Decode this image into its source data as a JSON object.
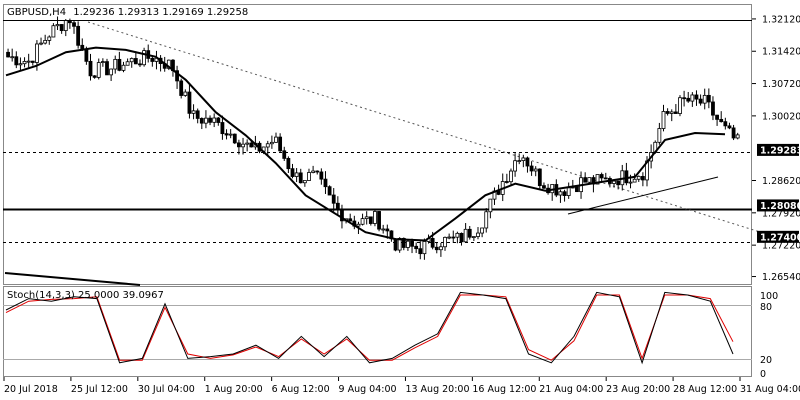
{
  "header": {
    "symbol": "GBPUSD,H4",
    "ohlc": "1.29236 1.29313 1.29169 1.29258"
  },
  "indicator": {
    "label": "Stoch(14,3,3) 25.0000 39.0967",
    "levels": [
      "100",
      "80",
      "20",
      "0"
    ]
  },
  "price_axis": {
    "ticks": [
      "1.32120",
      "1.31420",
      "1.30720",
      "1.30020",
      "1.28620",
      "1.27920",
      "1.27220",
      "1.26540"
    ],
    "badges": [
      "1.29283",
      "1.28080",
      "1.27400"
    ]
  },
  "time_axis": [
    "20 Jul 2018",
    "25 Jul 12:00",
    "30 Jul 04:00",
    "1 Aug 20:00",
    "6 Aug 12:00",
    "9 Aug 04:00",
    "13 Aug 20:00",
    "16 Aug 12:00",
    "21 Aug 04:00",
    "23 Aug 20:00",
    "28 Aug 12:00",
    "31 Aug 04:00"
  ],
  "chart_data": {
    "type": "candlestick",
    "symbol": "GBPUSD",
    "timeframe": "H4",
    "ylim": [
      1.264,
      1.324
    ],
    "x": [
      "20 Jul 2018",
      "25 Jul 12:00",
      "30 Jul 04:00",
      "1 Aug 20:00",
      "6 Aug 12:00",
      "9 Aug 04:00",
      "13 Aug 20:00",
      "16 Aug 12:00",
      "21 Aug 04:00",
      "23 Aug 20:00",
      "28 Aug 12:00",
      "31 Aug 04:00"
    ],
    "close_path": [
      1.313,
      1.312,
      1.318,
      1.3215,
      1.31,
      1.3105,
      1.312,
      1.313,
      1.311,
      1.3,
      1.299,
      1.296,
      1.2925,
      1.295,
      1.287,
      1.287,
      1.28,
      1.277,
      1.278,
      1.272,
      1.2715,
      1.273,
      1.2735,
      1.2765,
      1.285,
      1.2925,
      1.286,
      1.284,
      1.286,
      1.286,
      1.287,
      1.288,
      1.3,
      1.3035,
      1.303,
      1.297,
      1.2926
    ],
    "ma_path": [
      1.309,
      1.311,
      1.314,
      1.315,
      1.3145,
      1.313,
      1.308,
      1.301,
      1.296,
      1.29,
      1.283,
      1.279,
      1.275,
      1.2735,
      1.2732,
      1.278,
      1.283,
      1.2855,
      1.284,
      1.285,
      1.286,
      1.287,
      1.295,
      1.2965,
      1.2962
    ],
    "horizontal_levels": [
      1.3212,
      1.29283,
      1.2808,
      1.274
    ],
    "stoch_main": [
      75,
      88,
      85,
      90,
      88,
      15,
      20,
      82,
      20,
      22,
      25,
      35,
      20,
      45,
      22,
      45,
      15,
      20,
      35,
      48,
      95,
      92,
      88,
      25,
      15,
      45,
      95,
      90,
      15,
      95,
      92,
      85,
      25
    ],
    "stoch_signal": [
      72,
      85,
      87,
      88,
      90,
      18,
      18,
      78,
      25,
      20,
      24,
      33,
      22,
      42,
      25,
      42,
      18,
      18,
      32,
      45,
      92,
      92,
      90,
      30,
      18,
      40,
      92,
      92,
      20,
      92,
      92,
      88,
      39
    ]
  }
}
